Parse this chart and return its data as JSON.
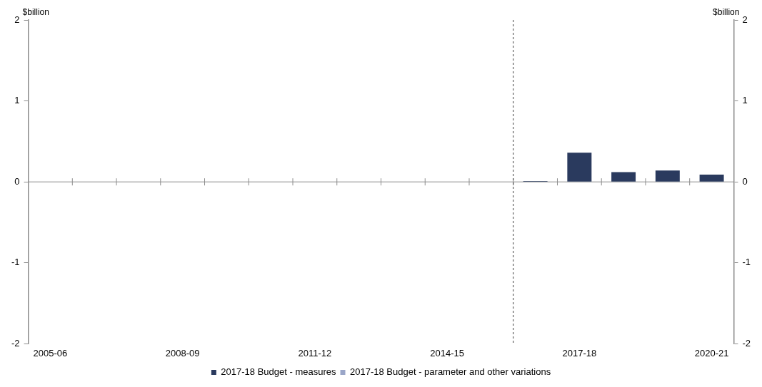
{
  "chart_data": {
    "type": "bar",
    "ylabel": "$billion",
    "y2label": "$billion",
    "categories": [
      "2005-06",
      null,
      null,
      "2008-09",
      null,
      null,
      "2011-12",
      null,
      null,
      "2014-15",
      null,
      null,
      "2017-18",
      null,
      null,
      "2020-21"
    ],
    "series": [
      {
        "name": "2017-18 Budget - measures",
        "color": "#2a3a5e",
        "values": [
          null,
          null,
          null,
          null,
          null,
          null,
          null,
          null,
          null,
          null,
          null,
          0.01,
          0.36,
          0.12,
          0.14,
          0.09
        ]
      },
      {
        "name": "2017-18 Budget - parameter and other variations",
        "color": "#9aa6c8",
        "values": [
          null,
          null,
          null,
          null,
          null,
          null,
          null,
          null,
          null,
          null,
          null,
          null,
          null,
          null,
          null,
          null
        ]
      }
    ],
    "ylim": [
      -2,
      2
    ],
    "yticks": [
      -2,
      -1,
      0,
      1,
      2
    ],
    "y2lim": [
      -2,
      2
    ],
    "y2ticks": [
      -2,
      -1,
      0,
      1,
      2
    ],
    "grid": false,
    "legend": "bottom"
  }
}
